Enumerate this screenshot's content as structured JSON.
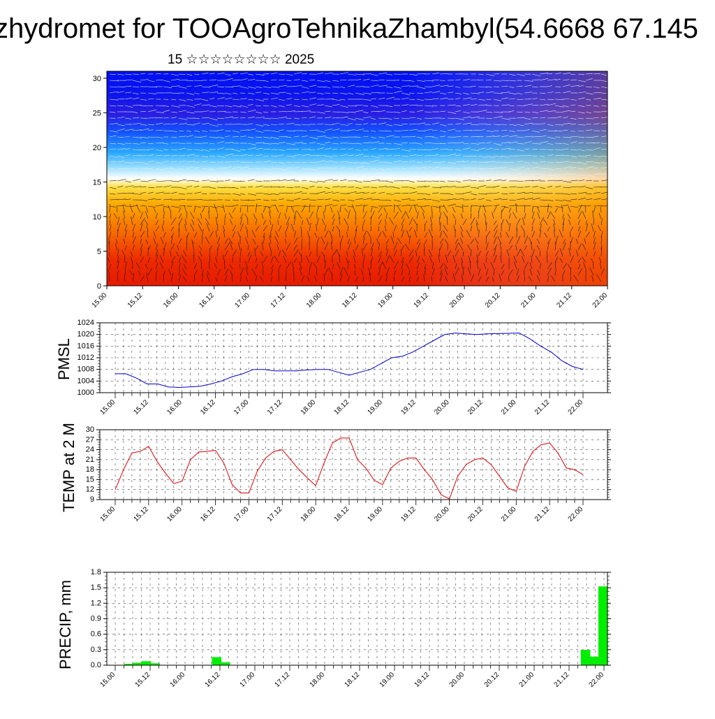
{
  "header": {
    "title": "zhydromet for TOOAgroTehnikaZhambyl(54.6668 67.145",
    "subtitle": "15 ☆☆☆☆☆☆☆☆ 2025"
  },
  "colors": {
    "pmsl_line": "#0000cc",
    "temp_line": "#dd0000",
    "precip_bar": "#00ee00",
    "frame": "#000000"
  },
  "chart_data": [
    {
      "type": "heatmap",
      "title": "",
      "x_ticks": [
        "15.00",
        "15.12",
        "16.00",
        "16.12",
        "17.00",
        "17.12",
        "18.00",
        "18.12",
        "19.00",
        "19.12",
        "20.00",
        "20.12",
        "21.00",
        "21.12",
        "22.00"
      ],
      "y_ticks": [
        "0",
        "5",
        "10",
        "15",
        "20",
        "25",
        "30"
      ],
      "ylim": [
        0,
        31
      ],
      "colormap": "red (low) to yellow to blue (high) with wind barbs overlaid",
      "warm_to_cool_transition_level": 15.5
    },
    {
      "type": "line",
      "ylabel": "PMSL",
      "x_ticks": [
        "15.00",
        "15.12",
        "16.00",
        "16.12",
        "17.00",
        "17.12",
        "18.00",
        "18.12",
        "19.00",
        "19.12",
        "20.00",
        "20.12",
        "21.00",
        "21.12",
        "22.00"
      ],
      "y_ticks": [
        "1000",
        "1004",
        "1008",
        "1012",
        "1016",
        "1020",
        "1024"
      ],
      "ylim": [
        1000,
        1024
      ],
      "grid": true,
      "series": [
        {
          "values": [
            1006.5,
            1006.5,
            1005,
            1003,
            1003,
            1002,
            1001.8,
            1002,
            1002.2,
            1003,
            1004,
            1005.5,
            1006.5,
            1008,
            1008,
            1007.5,
            1007.5,
            1007.5,
            1007.8,
            1008,
            1008,
            1007,
            1006,
            1007,
            1008,
            1010,
            1012,
            1012.5,
            1014,
            1016,
            1018,
            1020,
            1020.5,
            1020.2,
            1020,
            1020.2,
            1020.3,
            1020.4,
            1020.5,
            1018.5,
            1016,
            1014,
            1011,
            1009,
            1008
          ]
        }
      ]
    },
    {
      "type": "line",
      "ylabel": "TEMP at 2 M",
      "x_ticks": [
        "15.00",
        "15.12",
        "16.00",
        "16.12",
        "17.00",
        "17.12",
        "18.00",
        "18.12",
        "19.00",
        "19.12",
        "20.00",
        "20.12",
        "21.00",
        "21.12",
        "22.00"
      ],
      "y_ticks": [
        "9",
        "12",
        "15",
        "18",
        "21",
        "24",
        "27",
        "30"
      ],
      "ylim": [
        9,
        30
      ],
      "grid": true,
      "series": [
        {
          "values": [
            12,
            18,
            23,
            23.5,
            25,
            20.5,
            17,
            13.8,
            14.5,
            21,
            23.3,
            23.5,
            23.8,
            20,
            13.5,
            11,
            11,
            17.5,
            21.5,
            23.5,
            24,
            21,
            18,
            15.5,
            13.2,
            20,
            26,
            27.5,
            27.5,
            21,
            18.5,
            14.8,
            13.5,
            18.5,
            20.5,
            21.5,
            21.5,
            18,
            15,
            10.5,
            9.2,
            16,
            19.5,
            21,
            21.5,
            19.5,
            16,
            12.5,
            11.5,
            19,
            23.5,
            25.5,
            26,
            23,
            18.5,
            18,
            16.5
          ]
        }
      ]
    },
    {
      "type": "bar",
      "ylabel": "PRECIP, mm",
      "x_ticks": [
        "15.00",
        "15.12",
        "16.00",
        "16.12",
        "17.00",
        "17.12",
        "18.00",
        "18.12",
        "19.00",
        "19.12",
        "20.00",
        "20.12",
        "21.00",
        "21.12",
        "22.00"
      ],
      "y_ticks": [
        "0.0",
        "0.3",
        "0.6",
        "0.9",
        "1.2",
        "1.5",
        "1.8"
      ],
      "ylim": [
        0,
        1.8
      ],
      "grid": true,
      "series": [
        {
          "values": [
            0,
            0,
            0.02,
            0.04,
            0.07,
            0.03,
            0,
            0,
            0,
            0,
            0,
            0,
            0.15,
            0.05,
            0,
            0,
            0,
            0,
            0,
            0,
            0,
            0,
            0,
            0,
            0,
            0,
            0,
            0,
            0,
            0,
            0,
            0,
            0,
            0,
            0,
            0,
            0,
            0,
            0,
            0,
            0,
            0,
            0,
            0,
            0,
            0,
            0,
            0,
            0,
            0,
            0,
            0,
            0,
            0,
            0.29,
            0.16,
            1.52
          ]
        }
      ]
    }
  ]
}
